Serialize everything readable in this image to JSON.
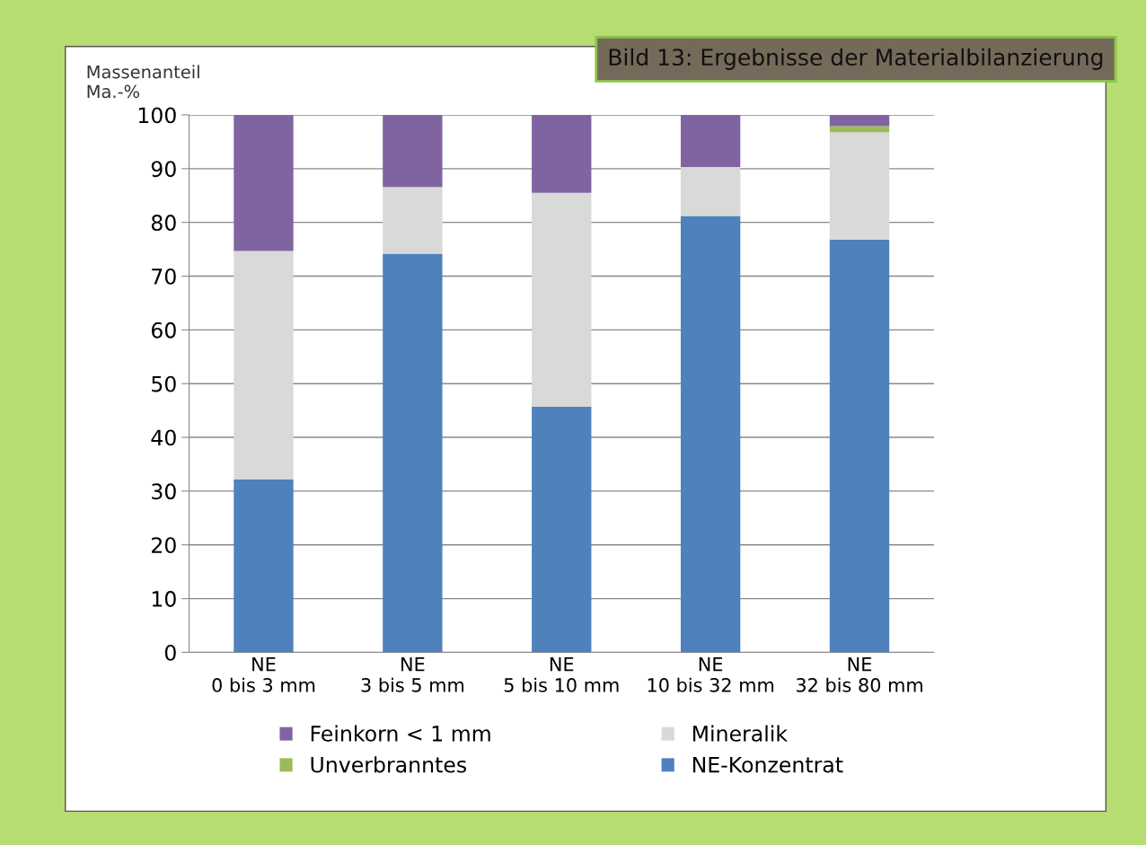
{
  "chart_data": {
    "type": "bar",
    "stacked": true,
    "title": "Bild 13: Ergebnisse der Materialbilanzierung",
    "ylabel": "Massenanteil\nMa.-%",
    "categories": [
      "NE\n0 bis 3 mm",
      "NE\n3 bis 5 mm",
      "NE\n5 bis 10 mm",
      "NE\n10 bis 32 mm",
      "NE\n32 bis 80 mm"
    ],
    "series": [
      {
        "name": "NE-Konzentrat",
        "color": "#4f81bd",
        "values": [
          32.2,
          74.2,
          45.7,
          81.2,
          76.8
        ]
      },
      {
        "name": "Mineralik",
        "color": "#d9d9d9",
        "values": [
          42.5,
          12.4,
          39.8,
          9.1,
          20.0
        ]
      },
      {
        "name": "Unverbranntes",
        "color": "#9bbb59",
        "values": [
          0,
          0,
          0,
          0,
          1.1
        ]
      },
      {
        "name": "Feinkorn < 1 mm",
        "color": "#8064a2",
        "values": [
          25.3,
          13.4,
          14.5,
          9.7,
          2.1
        ]
      }
    ],
    "ylim": [
      0,
      100
    ],
    "yticks": [
      0,
      10,
      20,
      30,
      40,
      50,
      60,
      70,
      80,
      90,
      100
    ],
    "grid": "y",
    "legend": "bottom"
  }
}
